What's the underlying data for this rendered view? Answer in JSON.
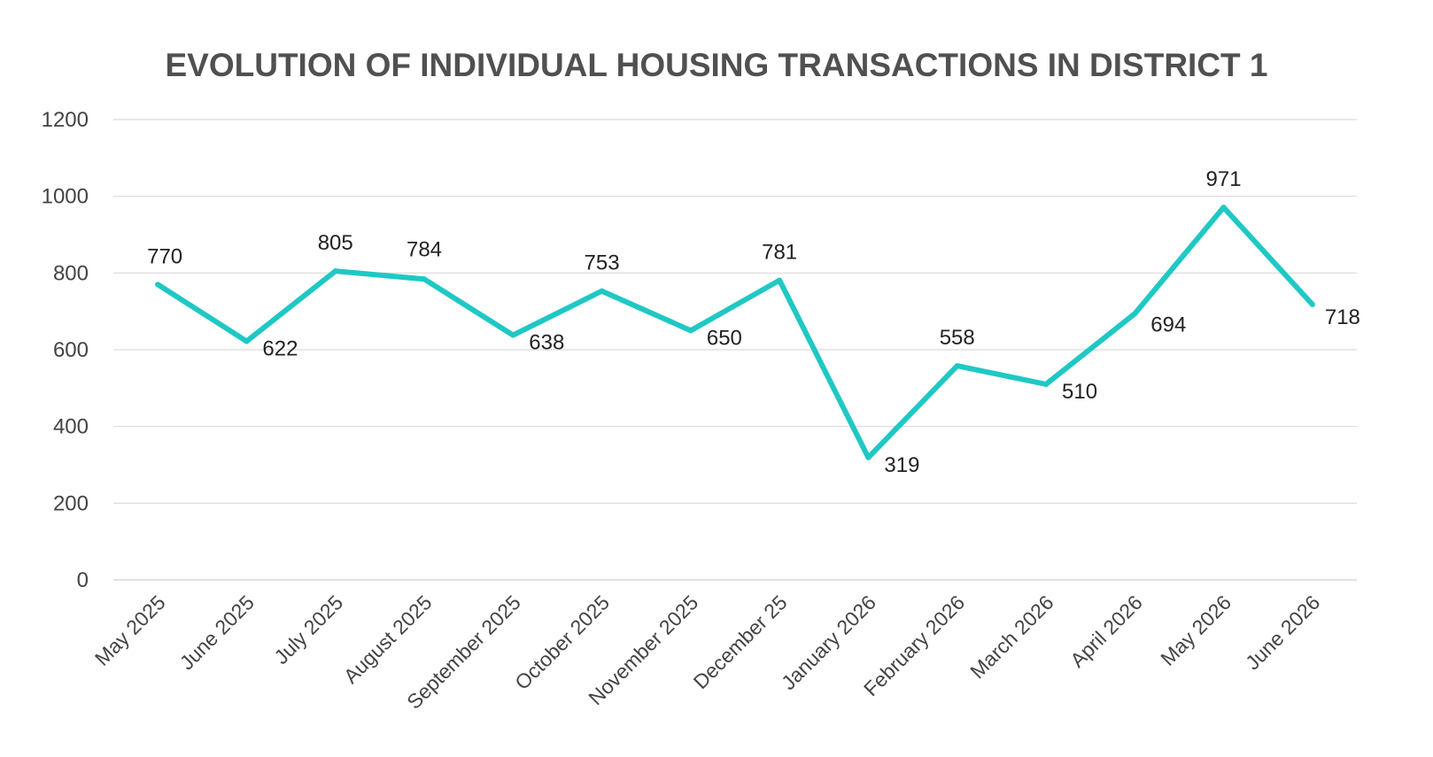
{
  "chart_data": {
    "type": "line",
    "title": "EVOLUTION OF INDIVIDUAL HOUSING TRANSACTIONS IN DISTRICT 1",
    "xlabel": "",
    "ylabel": "",
    "categories": [
      "May 2025",
      "June 2025",
      "July 2025",
      "August 2025",
      "September 2025",
      "October 2025",
      "November 2025",
      "December 25",
      "January 2026",
      "February 2026",
      "March 2026",
      "April 2026",
      "May 2026",
      "June 2026"
    ],
    "series": [
      {
        "values": [
          770,
          622,
          805,
          784,
          638,
          753,
          650,
          781,
          319,
          558,
          510,
          694,
          971,
          718
        ],
        "color": "#1fc8c4"
      }
    ],
    "ylim": [
      0,
      1200
    ],
    "yticks": [
      0,
      200,
      400,
      600,
      800,
      1000,
      1200
    ],
    "grid": true,
    "legend": "none"
  }
}
